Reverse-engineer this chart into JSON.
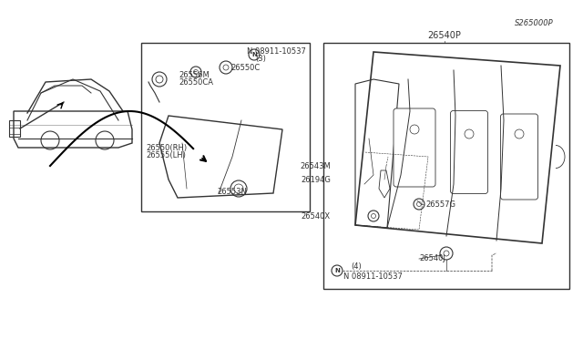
{
  "bg_color": "#ffffff",
  "line_color": "#333333",
  "text_color": "#333333",
  "fig_width": 6.4,
  "fig_height": 3.72,
  "dpi": 100,
  "diagram_code": "S265000P",
  "labels": {
    "left_box_label1": "26550(RH)",
    "left_box_label2": "26555(LH)",
    "left_nut_label": "N 08911-10537",
    "left_nut_sub": "(3)",
    "left_part1": "26550C",
    "left_part2": "26556M",
    "left_part3": "26550CA",
    "left_part4": "26553N",
    "right_nut_label": "N 08911-10537",
    "right_nut_sub": "(4)",
    "right_part1": "26540J",
    "right_part2": "26540X",
    "right_part3": "26557G",
    "right_part4": "26194G",
    "right_part5": "26543M",
    "right_main": "26540P"
  },
  "font_size_small": 6,
  "font_size_medium": 7,
  "font_size_code": 6
}
